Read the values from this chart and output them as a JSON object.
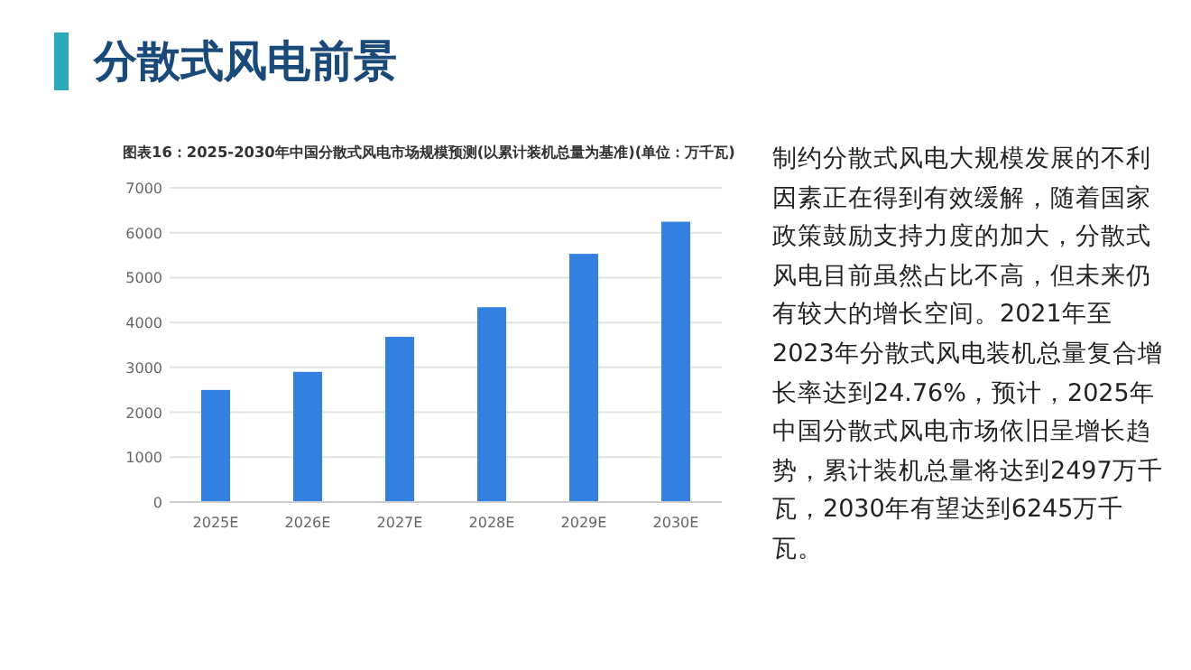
{
  "chart_data": {
    "type": "bar",
    "title": "分散式风电前景",
    "subtitle": "图表16：2025-2030年中国分散式风电市场规模预测(以累计装机总量为基准)(单位：万千瓦)",
    "categories": [
      "2025E",
      "2026E",
      "2027E",
      "2028E",
      "2029E",
      "2030E"
    ],
    "values": [
      2497,
      2900,
      3680,
      4340,
      5530,
      6245
    ],
    "color": "#3380e0",
    "ylim": [
      0,
      7000
    ],
    "yticks": [
      0,
      1000,
      2000,
      3000,
      4000,
      5000,
      6000,
      7000
    ],
    "grid": "y",
    "annotations": [
      "制约分散式风电大规模发展的不利因素正在得到有效缓解，随着国家政策鼓励支持力度的加大，分散式风电目前虽然占比不高，但未来仍有较大的增长空间。2021年至2023年分散式风电装机总量复合增长率达到24.76%，预计，2025年中国分散式风电市场依旧呈增长趋势，累计装机总量将达到2497万千瓦，2030年有望达到6245万千瓦。"
    ]
  }
}
